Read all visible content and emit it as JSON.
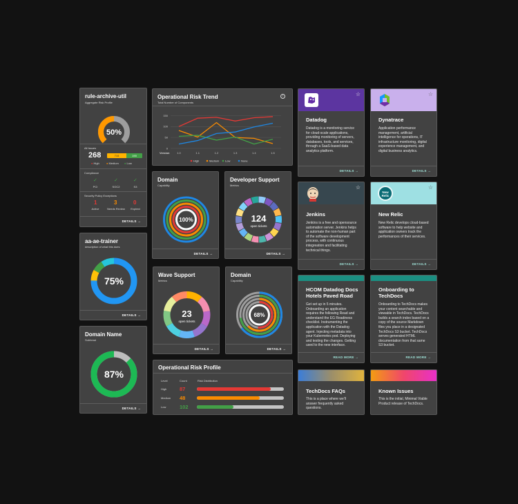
{
  "colors": {
    "card": "#424242",
    "high": "#e53935",
    "medium": "#fb8c00",
    "low": "#43a047",
    "none": "#1e88e5"
  },
  "rule_archive": {
    "title": "rule-archive-util",
    "subtitle": "Aggregate Risk Profile",
    "gauge_percent": 50,
    "gauge_label": "50%",
    "all_issues_label": "All Issues",
    "total": "268",
    "bar_segments": [
      {
        "label": "715",
        "fraction": 0.55
      },
      {
        "label": "190",
        "fraction": 0.45
      }
    ],
    "legend": [
      "High",
      "Medium",
      "Low"
    ],
    "compliance_label": "Compliance",
    "compliance_items": [
      "PCI",
      "SOC2",
      "S3"
    ],
    "exceptions_label": "Security Policy Exceptions",
    "exceptions": [
      {
        "value": "1",
        "label": "Active"
      },
      {
        "value": "3",
        "label": "Needs Review"
      },
      {
        "value": "0",
        "label": "Expired"
      }
    ],
    "details": "DETAILS →"
  },
  "aa_trainer": {
    "title": "aa-ae-trainer",
    "subtitle": "description of what this does",
    "value": "75%",
    "percent": 75,
    "details": "DETAILS →"
  },
  "domain_name": {
    "title": "Domain Name",
    "subtitle": "Subhead",
    "value": "87%",
    "percent": 87,
    "details": "DETAILS →"
  },
  "risk_trend": {
    "title": "Operational Risk Trend",
    "subtitle": "Total Number of Components",
    "info_icon": "info-icon"
  },
  "chart_data": {
    "type": "line",
    "title": "Operational Risk Trend",
    "subtitle": "Total Number of Components",
    "xlabel": "Version",
    "x": [
      "1.0",
      "1.1",
      "1.2",
      "1.3",
      "1.4",
      "1.5"
    ],
    "yticks": [
      0,
      50,
      100,
      150
    ],
    "ylim": [
      0,
      170
    ],
    "series": [
      {
        "name": "High",
        "color": "#e53935",
        "values": [
          100,
          138,
          142,
          125,
          140,
          145
        ]
      },
      {
        "name": "Medium",
        "color": "#fb8c00",
        "values": [
          82,
          52,
          118,
          50,
          46,
          22
        ]
      },
      {
        "name": "Low",
        "color": "#43a047",
        "values": [
          55,
          60,
          38,
          52,
          20,
          42
        ]
      },
      {
        "name": "None",
        "color": "#1e88e5",
        "values": [
          20,
          36,
          68,
          75,
          98,
          115
        ]
      }
    ],
    "legend_position": "bottom"
  },
  "domain_cap": {
    "title": "Domain",
    "subtitle": "Capability",
    "value": "100%",
    "details": "DETAILS →"
  },
  "dev_support": {
    "title": "Developer Support",
    "subtitle": "Metrics",
    "value": "124",
    "unit": "open tickets",
    "details": "DETAILS →"
  },
  "wave_support": {
    "title": "Wave Support",
    "subtitle": "Metrics",
    "value": "23",
    "unit": "open tickets",
    "details": "DETAILS →"
  },
  "domain_cap2": {
    "title": "Domain",
    "subtitle": "Capability",
    "value": "68%",
    "details": "DETAILS →"
  },
  "risk_profile": {
    "title": "Operational Risk Profile",
    "headers": {
      "level": "Level",
      "count": "Count",
      "dist": "Risk Distribution"
    },
    "rows": [
      {
        "level": "High",
        "count": "87",
        "color": "#e53935",
        "fraction": 0.85
      },
      {
        "level": "Medium",
        "count": "48",
        "color": "#fb8c00",
        "fraction": 0.72
      },
      {
        "level": "Low",
        "count": "102",
        "color": "#43a047",
        "fraction": 0.42
      }
    ]
  },
  "tools": [
    {
      "name": "Datadog",
      "desc": "Datadog is a monitoring service for cloud-scale applications, providing monitoring of servers, databases, tools, and services, through a SaaS-based data analytics platform.",
      "action": "DETAILS →",
      "banner": "#5c35a0",
      "logo": "datadog-logo-icon"
    },
    {
      "name": "Dynatrace",
      "desc": "Application performance management, artificial intelligence for operations, IT infrastructure monitoring, digital experience management, and digital business analytics.",
      "action": "DETAILS →",
      "banner": "#c9b0ec",
      "logo": "dynatrace-logo-icon"
    },
    {
      "name": "Jenkins",
      "desc": "Jenkins is a free and opensource automation server. Jenkins helps to automate the non-human part of the software development process, with continuous integreation and facilitating technical things.",
      "action": "DETAILS →",
      "banner": "#37474f",
      "logo": "jenkins-logo-icon"
    },
    {
      "name": "New Relic",
      "desc": "New Relic develops cloud-based software to help website and application owners track the performances of their services.",
      "action": "DETAILS →",
      "banner": "#9ee0e3",
      "logo": "new-relic-logo-icon",
      "logo_text": "New Relic"
    },
    {
      "name": "HCOM Datadog Docs Hotels Paved Road",
      "desc": "Get set up in 5 minutes. Onboarding an application requires the following Read and understand the EG Readiness checklist. Instrumenting the application with the Datadog agent. Injecting metadata into your Kubernetes pod. Deploying and testing the changes. Getting used to the new interface.",
      "action": "READ MORE →",
      "banner": "#1b8f82"
    },
    {
      "name": "Onboarding to TechDocs",
      "desc": "Onboarding to TechDocs makes your content searchable and viewable in TechDocs. TechDocs builds a search index based on a copy of the source Markdown files you place in a designated TechDocs S3 bucket. TechDocs serves generated HTML documentation from that same S3 bucket.",
      "action": "READ MORE →",
      "banner": "#1b8f82"
    },
    {
      "name": "TechDocs FAQs",
      "desc": "This is a place where we'll answer frequently asked questions."
    },
    {
      "name": "Known Issues",
      "desc": "This is the initial, Minimal Viable Product release of TechDocs."
    }
  ]
}
